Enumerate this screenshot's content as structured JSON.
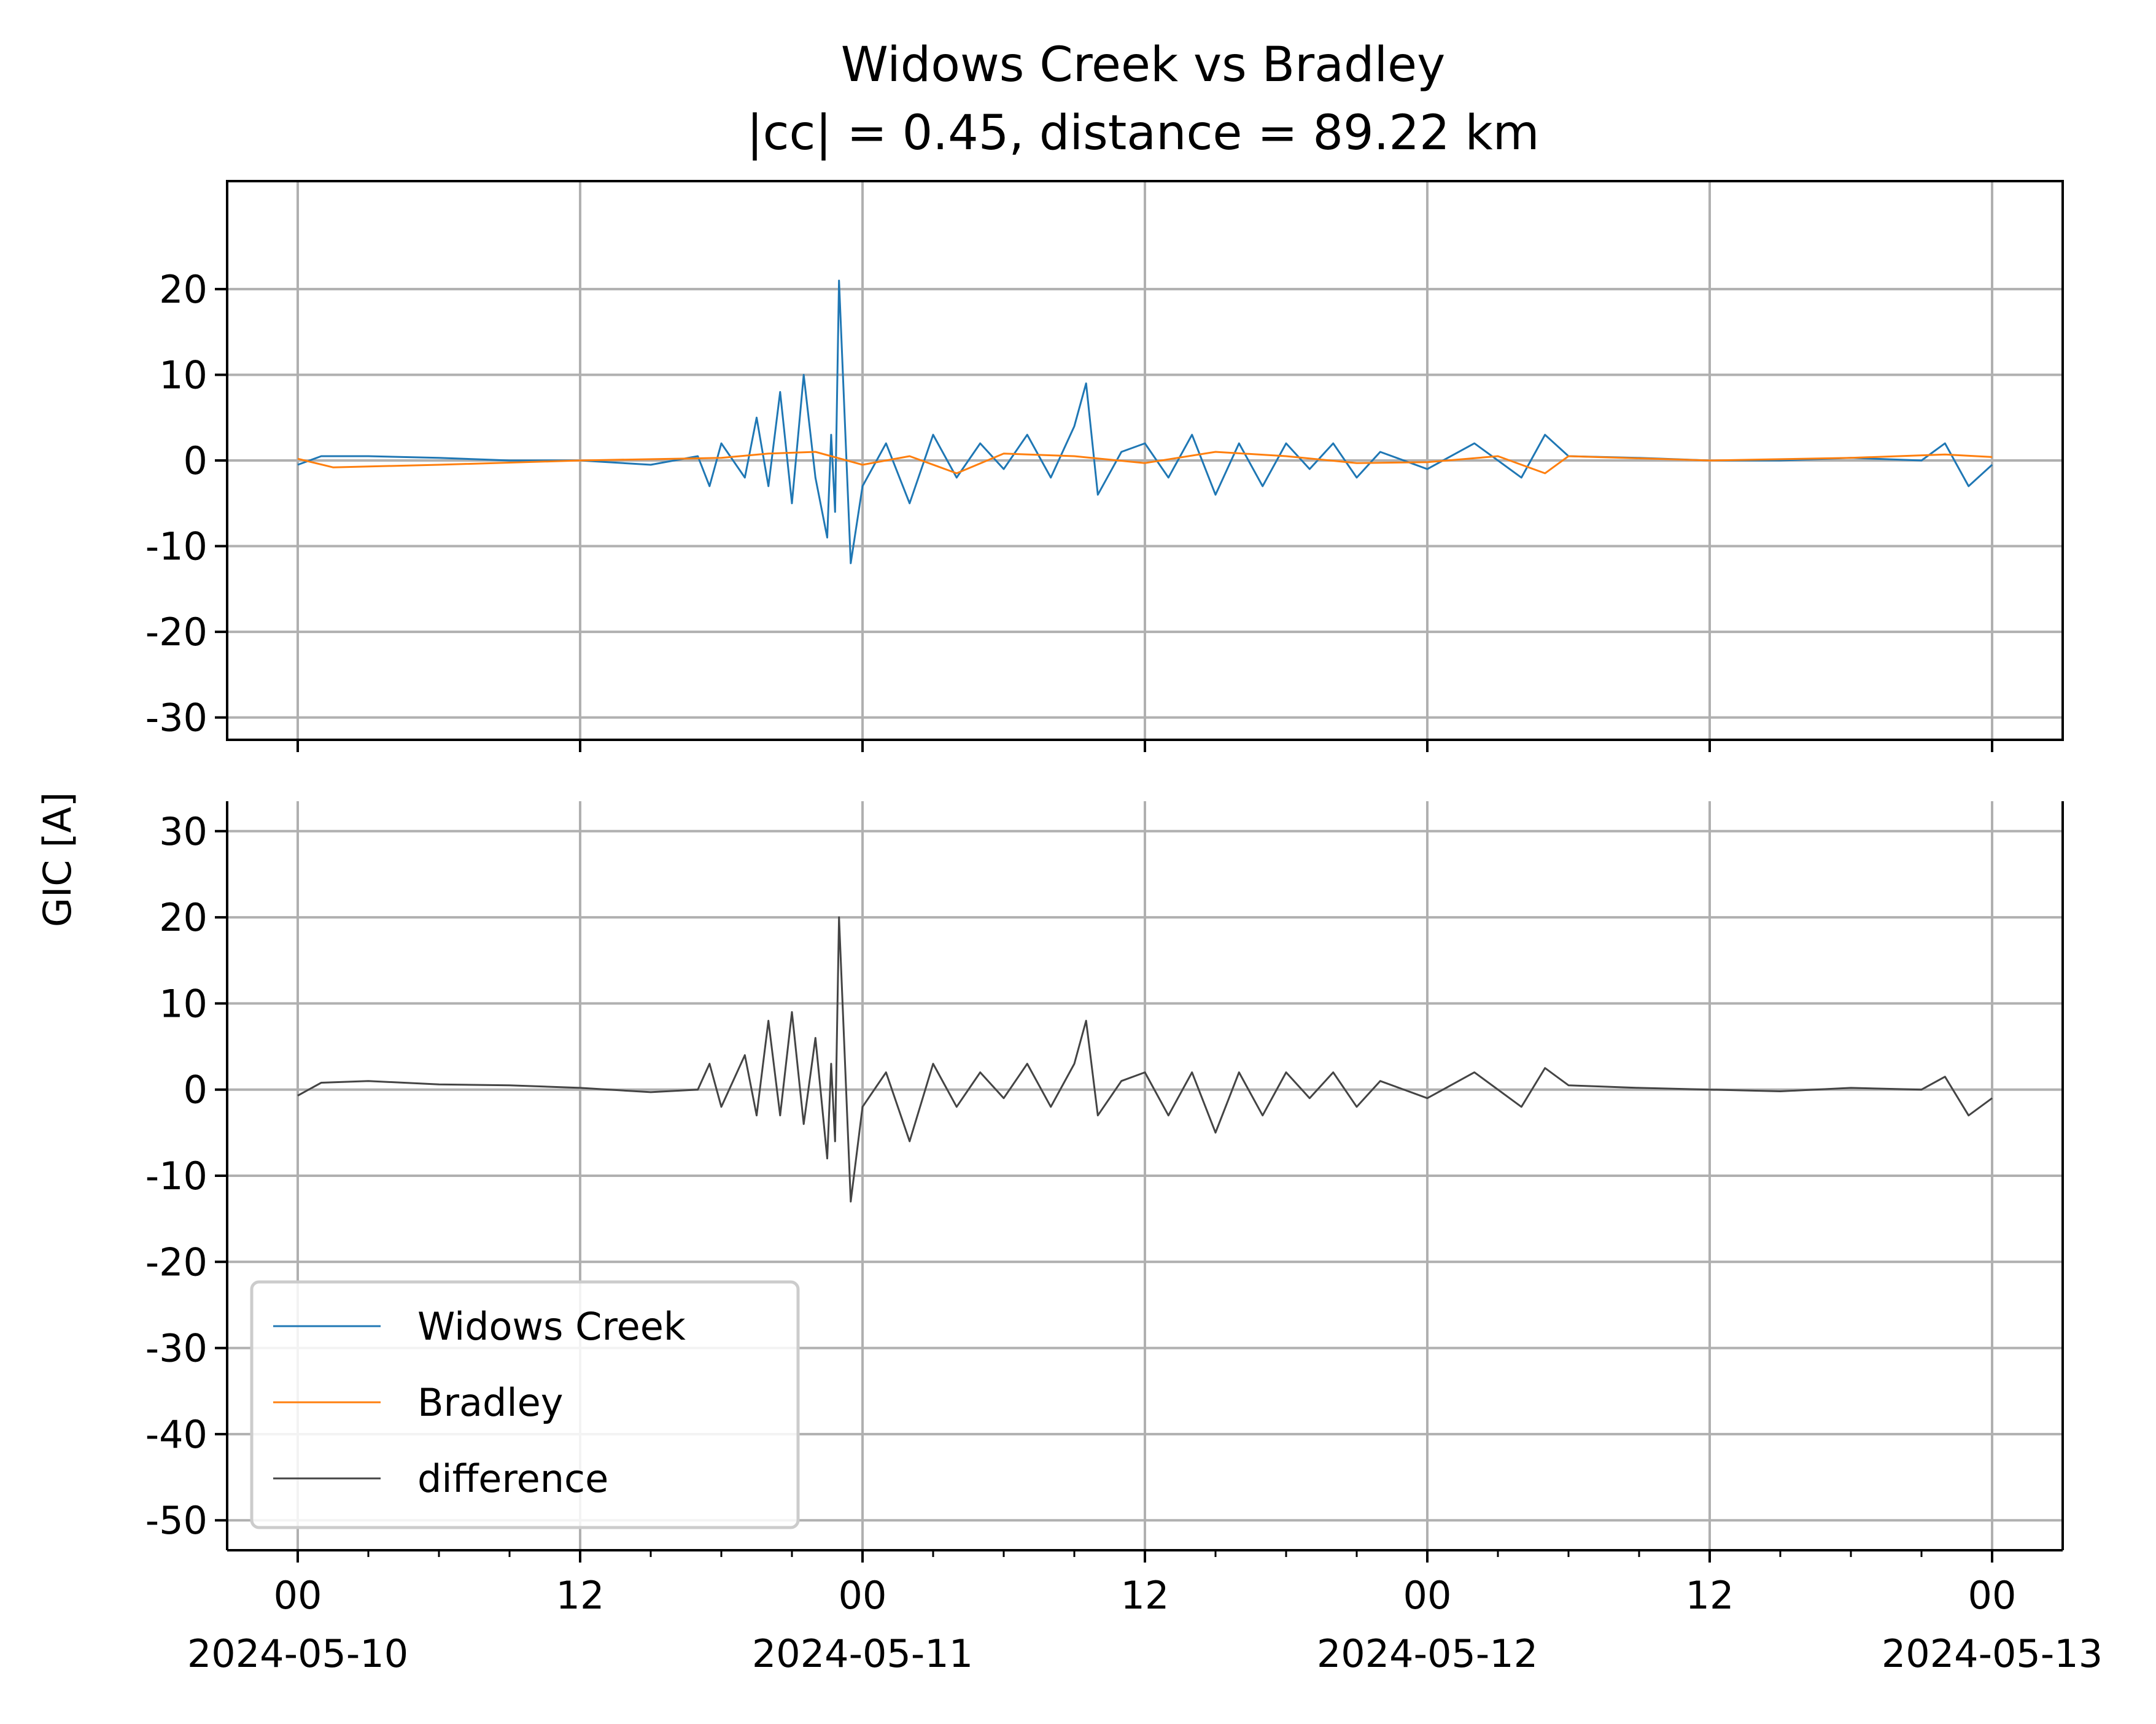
{
  "chart_data": [
    {
      "type": "line",
      "title": "Widows Creek vs Bradley",
      "subtitle": "|cc| = 0.45, distance = 89.22 km",
      "xlabel": "",
      "ylabel": "GIC [A]",
      "x_range": [
        "2024-05-09T21:00",
        "2024-05-13T03:00"
      ],
      "ylim": [
        -30,
        30
      ],
      "yticks": [
        "20",
        "10",
        "0",
        "-10",
        "-20",
        "-30"
      ],
      "ytick_values": [
        20,
        10,
        0,
        -10,
        -20,
        -30
      ],
      "grid": true,
      "series": [
        {
          "name": "Widows Creek",
          "color": "#1f77b4",
          "x": [
            "2024-05-10T00:00",
            "2024-05-10T01:00",
            "2024-05-10T03:00",
            "2024-05-10T06:00",
            "2024-05-10T09:00",
            "2024-05-10T12:00",
            "2024-05-10T15:00",
            "2024-05-10T17:00",
            "2024-05-10T17:30",
            "2024-05-10T18:00",
            "2024-05-10T19:00",
            "2024-05-10T19:30",
            "2024-05-10T20:00",
            "2024-05-10T20:30",
            "2024-05-10T21:00",
            "2024-05-10T21:30",
            "2024-05-10T22:00",
            "2024-05-10T22:30",
            "2024-05-10T22:40",
            "2024-05-10T22:50",
            "2024-05-10T23:00",
            "2024-05-10T23:30",
            "2024-05-11T00:00",
            "2024-05-11T01:00",
            "2024-05-11T02:00",
            "2024-05-11T03:00",
            "2024-05-11T04:00",
            "2024-05-11T05:00",
            "2024-05-11T06:00",
            "2024-05-11T07:00",
            "2024-05-11T08:00",
            "2024-05-11T09:00",
            "2024-05-11T09:30",
            "2024-05-11T10:00",
            "2024-05-11T11:00",
            "2024-05-11T12:00",
            "2024-05-11T13:00",
            "2024-05-11T14:00",
            "2024-05-11T15:00",
            "2024-05-11T16:00",
            "2024-05-11T17:00",
            "2024-05-11T18:00",
            "2024-05-11T19:00",
            "2024-05-11T20:00",
            "2024-05-11T21:00",
            "2024-05-11T22:00",
            "2024-05-12T00:00",
            "2024-05-12T02:00",
            "2024-05-12T04:00",
            "2024-05-12T05:00",
            "2024-05-12T06:00",
            "2024-05-12T09:00",
            "2024-05-12T12:00",
            "2024-05-12T15:00",
            "2024-05-12T18:00",
            "2024-05-12T21:00",
            "2024-05-12T22:00",
            "2024-05-12T23:00",
            "2024-05-13T00:00"
          ],
          "y": [
            -0.5,
            0.5,
            0.5,
            0.3,
            0,
            0,
            -0.5,
            0.5,
            -3,
            2,
            -2,
            5,
            -3,
            8,
            -5,
            10,
            -2,
            -9,
            3,
            -6,
            21,
            -12,
            -3,
            2,
            -5,
            3,
            -2,
            2,
            -1,
            3,
            -2,
            4,
            9,
            -4,
            1,
            2,
            -2,
            3,
            -4,
            2,
            -3,
            2,
            -1,
            2,
            -2,
            1,
            -1,
            2,
            -2,
            3,
            0.5,
            0.3,
            0,
            0,
            0.3,
            0,
            2,
            -3,
            -0.5
          ]
        },
        {
          "name": "Bradley",
          "color": "#ff7f0e",
          "x": [
            "2024-05-10T00:00",
            "2024-05-10T01:30",
            "2024-05-10T06:00",
            "2024-05-10T12:00",
            "2024-05-10T18:00",
            "2024-05-10T20:00",
            "2024-05-10T22:00",
            "2024-05-11T00:00",
            "2024-05-11T02:00",
            "2024-05-11T04:00",
            "2024-05-11T06:00",
            "2024-05-11T09:00",
            "2024-05-11T12:00",
            "2024-05-11T15:00",
            "2024-05-11T18:00",
            "2024-05-11T21:00",
            "2024-05-12T00:00",
            "2024-05-12T03:00",
            "2024-05-12T05:00",
            "2024-05-12T06:00",
            "2024-05-12T12:00",
            "2024-05-12T18:00",
            "2024-05-12T22:00",
            "2024-05-13T00:00"
          ],
          "y": [
            0.2,
            -0.8,
            -0.5,
            0,
            0.3,
            0.8,
            1,
            -0.5,
            0.5,
            -1.5,
            0.8,
            0.5,
            -0.3,
            1,
            0.5,
            -0.3,
            -0.2,
            0.5,
            -1.5,
            0.5,
            0,
            0.3,
            0.7,
            0.4
          ]
        },
        {
          "name": "difference",
          "color": "#444444",
          "x": [
            "2024-05-10T00:00",
            "2024-05-10T01:00",
            "2024-05-10T03:00",
            "2024-05-10T06:00",
            "2024-05-10T09:00",
            "2024-05-10T12:00",
            "2024-05-10T15:00",
            "2024-05-10T17:00",
            "2024-05-10T17:30",
            "2024-05-10T18:00",
            "2024-05-10T19:00",
            "2024-05-10T19:30",
            "2024-05-10T20:00",
            "2024-05-10T20:30",
            "2024-05-10T21:00",
            "2024-05-10T21:30",
            "2024-05-10T22:00",
            "2024-05-10T22:30",
            "2024-05-10T22:40",
            "2024-05-10T22:50",
            "2024-05-10T23:00",
            "2024-05-10T23:30",
            "2024-05-11T00:00",
            "2024-05-11T01:00",
            "2024-05-11T02:00",
            "2024-05-11T03:00",
            "2024-05-11T04:00",
            "2024-05-11T05:00",
            "2024-05-11T06:00",
            "2024-05-11T07:00",
            "2024-05-11T08:00",
            "2024-05-11T09:00",
            "2024-05-11T09:30",
            "2024-05-11T10:00",
            "2024-05-11T11:00",
            "2024-05-11T12:00",
            "2024-05-11T13:00",
            "2024-05-11T14:00",
            "2024-05-11T15:00",
            "2024-05-11T16:00",
            "2024-05-11T17:00",
            "2024-05-11T18:00",
            "2024-05-11T19:00",
            "2024-05-11T20:00",
            "2024-05-11T21:00",
            "2024-05-11T22:00",
            "2024-05-12T00:00",
            "2024-05-12T02:00",
            "2024-05-12T04:00",
            "2024-05-12T05:00",
            "2024-05-12T06:00",
            "2024-05-12T09:00",
            "2024-05-12T12:00",
            "2024-05-12T15:00",
            "2024-05-12T18:00",
            "2024-05-12T21:00",
            "2024-05-12T22:00",
            "2024-05-12T23:00",
            "2024-05-13T00:00"
          ],
          "y": [
            -0.7,
            0.8,
            1,
            0.6,
            0.5,
            0.2,
            -0.3,
            0,
            3,
            -2,
            4,
            -3,
            8,
            -3,
            9,
            -4,
            6,
            -8,
            3,
            -6,
            20,
            -13,
            -2,
            2,
            -6,
            3,
            -2,
            2,
            -1,
            3,
            -2,
            3,
            8,
            -3,
            1,
            2,
            -3,
            2,
            -5,
            2,
            -3,
            2,
            -1,
            2,
            -2,
            1,
            -1,
            2,
            -2,
            2.5,
            0.5,
            0.2,
            0,
            -0.2,
            0.2,
            0,
            1.5,
            -3,
            -1
          ]
        }
      ],
      "subplots": [
        {
          "name": "top",
          "series": [
            "Widows Creek",
            "Bradley"
          ],
          "ylim": [
            -30,
            30
          ],
          "yticks": [
            "20",
            "10",
            "0",
            "-10",
            "-20",
            "-30"
          ],
          "ytick_values": [
            20,
            10,
            0,
            -10,
            -20,
            -30
          ]
        },
        {
          "name": "bottom",
          "series": [
            "difference"
          ],
          "ylim": [
            -50,
            30
          ],
          "yticks": [
            "30",
            "20",
            "10",
            "0",
            "-10",
            "-20",
            "-30",
            "-40",
            "-50"
          ],
          "ytick_values": [
            30,
            20,
            10,
            0,
            -10,
            -20,
            -30,
            -40,
            -50
          ]
        }
      ],
      "xticks": [
        {
          "x": "2024-05-10T00:00",
          "label": "00",
          "date": "2024-05-10"
        },
        {
          "x": "2024-05-10T12:00",
          "label": "12",
          "date": ""
        },
        {
          "x": "2024-05-11T00:00",
          "label": "00",
          "date": "2024-05-11"
        },
        {
          "x": "2024-05-11T12:00",
          "label": "12",
          "date": ""
        },
        {
          "x": "2024-05-12T00:00",
          "label": "00",
          "date": "2024-05-12"
        },
        {
          "x": "2024-05-12T12:00",
          "label": "12",
          "date": ""
        },
        {
          "x": "2024-05-13T00:00",
          "label": "00",
          "date": "2024-05-13"
        }
      ],
      "legend": {
        "location": "lower-left",
        "entries": [
          "Widows Creek",
          "Bradley",
          "difference"
        ]
      }
    }
  ]
}
